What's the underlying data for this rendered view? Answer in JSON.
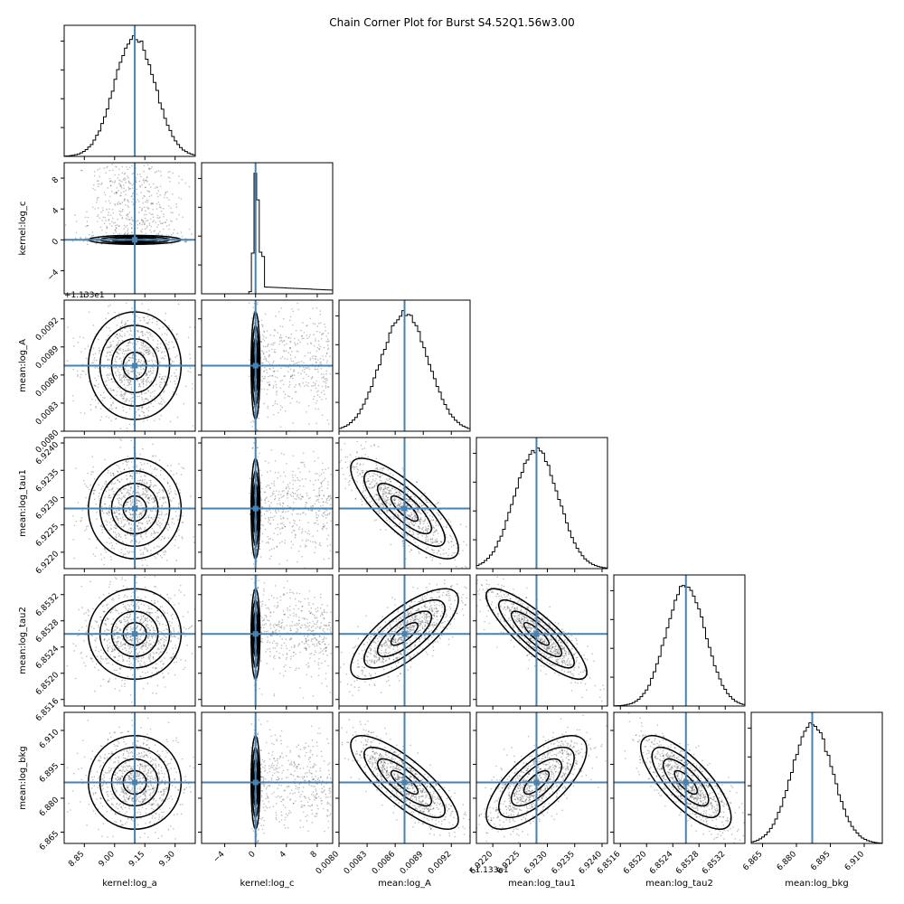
{
  "chart_data": {
    "type": "corner",
    "title": "Chain Corner Plot for Burst S4.52Q1.56w3.00",
    "truth_color": "#4682b4",
    "offset_label": "+1.133e1",
    "parameters": [
      {
        "name": "kernel:log_a",
        "range": [
          8.75,
          9.4
        ],
        "ticks": [
          8.85,
          9.0,
          9.15,
          9.3
        ],
        "tick_labels": [
          "8.85",
          "9.00",
          "9.15",
          "9.30"
        ],
        "truth": 9.1,
        "sigma": 0.1
      },
      {
        "name": "kernel:log_c",
        "range": [
          -7,
          10
        ],
        "ticks": [
          -4,
          0,
          4,
          8
        ],
        "tick_labels": [
          "−4",
          "0",
          "4",
          "8"
        ],
        "truth": 0,
        "sigma": 0.25
      },
      {
        "name": "mean:log_A",
        "range": [
          0.008,
          0.0094
        ],
        "ticks": [
          0.008,
          0.0083,
          0.0086,
          0.0089,
          0.0092
        ],
        "tick_labels": [
          "0.0080",
          "0.0083",
          "0.0086",
          "0.0089",
          "0.0092"
        ],
        "truth": 0.0087,
        "sigma": 0.00025
      },
      {
        "name": "mean:log_tau1",
        "range": [
          6.9217,
          6.9241
        ],
        "ticks": [
          6.922,
          6.9225,
          6.923,
          6.9235,
          6.924
        ],
        "tick_labels": [
          "6.9220",
          "6.9225",
          "6.9230",
          "6.9235",
          "6.9240"
        ],
        "truth": 6.9228,
        "sigma": 0.0004
      },
      {
        "name": "mean:log_tau2",
        "range": [
          6.8515,
          6.8535
        ],
        "ticks": [
          6.8516,
          6.852,
          6.8524,
          6.8528,
          6.8532
        ],
        "tick_labels": [
          "6.8516",
          "6.8520",
          "6.8524",
          "6.8528",
          "6.8532"
        ],
        "truth": 6.8526,
        "sigma": 0.0003
      },
      {
        "name": "mean:log_bkg",
        "range": [
          6.86,
          6.918
        ],
        "ticks": [
          6.865,
          6.88,
          6.895,
          6.91
        ],
        "tick_labels": [
          "6.865",
          "6.880",
          "6.895",
          "6.910"
        ],
        "truth": 6.887,
        "sigma": 0.009
      }
    ],
    "correlations": {
      "mean:log_A|mean:log_tau1": -0.8,
      "mean:log_A|mean:log_tau2": 0.75,
      "mean:log_A|mean:log_bkg": -0.8,
      "mean:log_tau1|mean:log_tau2": -0.85,
      "mean:log_tau1|mean:log_bkg": 0.7,
      "mean:log_tau2|mean:log_bkg": -0.75
    },
    "notes": "kernel:log_c marginal is sharply peaked at 0 with a long flat tail to ~10"
  }
}
